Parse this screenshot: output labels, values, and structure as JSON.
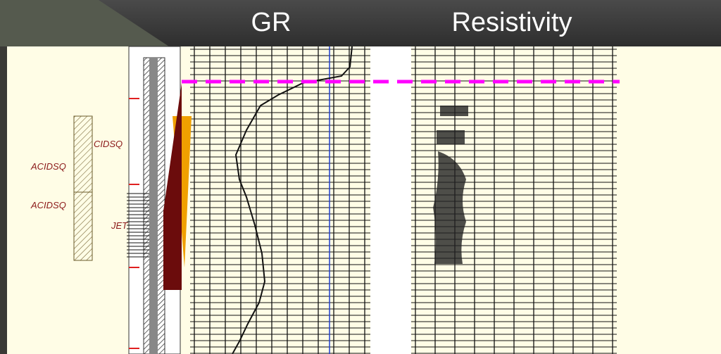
{
  "header": {
    "left_title": "GR",
    "right_title": "Resistivity"
  },
  "log": {
    "lithology_labels": [
      "ACIDSQ",
      "ACIDSQ"
    ],
    "perforation_labels": [
      "CIDSQ",
      "JET"
    ]
  }
}
